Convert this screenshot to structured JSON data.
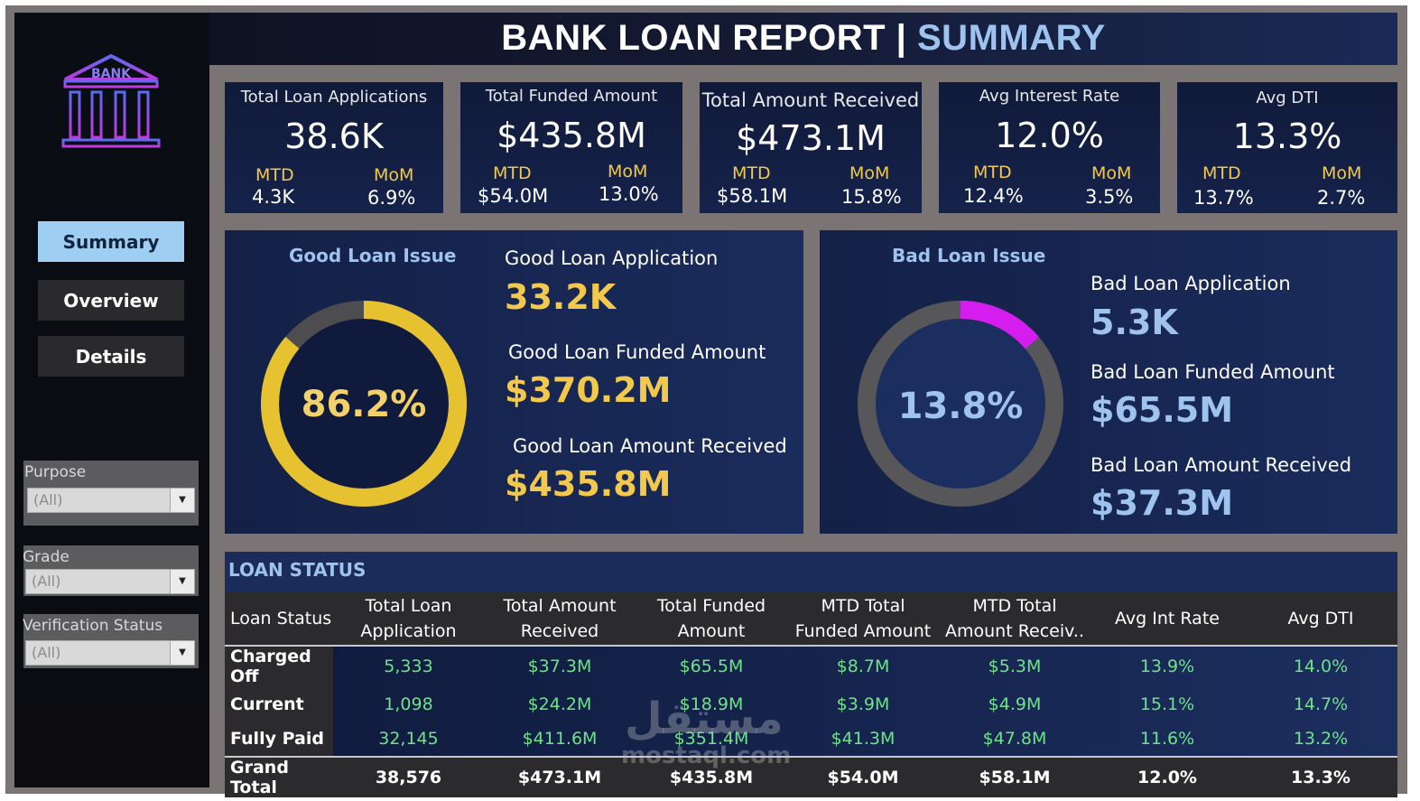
{
  "header": {
    "title": "BANK LOAN REPORT |",
    "title_accent": "SUMMARY"
  },
  "logo": {
    "text": "BANK",
    "icon": "bank-icon"
  },
  "nav": [
    {
      "label": "Summary",
      "active": true
    },
    {
      "label": "Overview",
      "active": false
    },
    {
      "label": "Details",
      "active": false
    }
  ],
  "filters": [
    {
      "label": "Purpose",
      "value": "(All)"
    },
    {
      "label": "Grade",
      "value": "(All)"
    },
    {
      "label": "Verification Status",
      "value": "(All)"
    }
  ],
  "kpis": [
    {
      "title": "Total Loan Applications",
      "value": "38.6K",
      "mtd_label": "MTD",
      "mtd": "4.3K",
      "mom_label": "MoM",
      "mom": "6.9%"
    },
    {
      "title": "Total Funded Amount",
      "value": "$435.8M",
      "mtd_label": "MTD",
      "mtd": "$54.0M",
      "mom_label": "MoM",
      "mom": "13.0%"
    },
    {
      "title": "Total Amount Received",
      "value": "$473.1M",
      "mtd_label": "MTD",
      "mtd": "$58.1M",
      "mom_label": "MoM",
      "mom": "15.8%"
    },
    {
      "title": "Avg Interest Rate",
      "value": "12.0%",
      "mtd_label": "MTD",
      "mtd": "12.4%",
      "mom_label": "MoM",
      "mom": "3.5%"
    },
    {
      "title": "Avg DTI",
      "value": "13.3%",
      "mtd_label": "MTD",
      "mtd": "13.7%",
      "mom_label": "MoM",
      "mom": "2.7%"
    }
  ],
  "good_loan": {
    "title": "Good Loan Issue",
    "percent_label": "86.2%",
    "percent": 86.2,
    "app_label": "Good Loan Application",
    "app_value": "33.2K",
    "funded_label": "Good Loan Funded Amount",
    "funded_value": "$370.2M",
    "received_label": "Good Loan Amount Received",
    "received_value": "$435.8M",
    "color": "#e6c230"
  },
  "bad_loan": {
    "title": "Bad Loan Issue",
    "percent_label": "13.8%",
    "percent": 13.8,
    "app_label": "Bad Loan Application",
    "app_value": "5.3K",
    "funded_label": "Bad Loan Funded Amount",
    "funded_value": "$65.5M",
    "received_label": "Bad Loan Amount Received",
    "received_value": "$37.3M",
    "color": "#d61df0"
  },
  "loan_status": {
    "title": "LOAN STATUS",
    "columns": [
      [
        "Loan Status"
      ],
      [
        "Total Loan",
        "Application"
      ],
      [
        "Total Amount",
        "Received"
      ],
      [
        "Total Funded",
        "Amount"
      ],
      [
        "MTD Total",
        "Funded Amount"
      ],
      [
        "MTD Total",
        "Amount Receiv.."
      ],
      [
        "Avg Int Rate"
      ],
      [
        "Avg DTI"
      ]
    ],
    "rows": [
      [
        "Charged Off",
        "5,333",
        "$37.3M",
        "$65.5M",
        "$8.7M",
        "$5.3M",
        "13.9%",
        "14.0%"
      ],
      [
        "Current",
        "1,098",
        "$24.2M",
        "$18.9M",
        "$3.9M",
        "$4.9M",
        "15.1%",
        "14.7%"
      ],
      [
        "Fully Paid",
        "32,145",
        "$411.6M",
        "$351.4M",
        "$41.3M",
        "$47.8M",
        "11.6%",
        "13.2%"
      ]
    ],
    "total": [
      "Grand Total",
      "38,576",
      "$473.1M",
      "$435.8M",
      "$54.0M",
      "$58.1M",
      "12.0%",
      "13.3%"
    ]
  },
  "watermark": {
    "top": "مستقل",
    "bottom": "mostaql.com"
  }
}
